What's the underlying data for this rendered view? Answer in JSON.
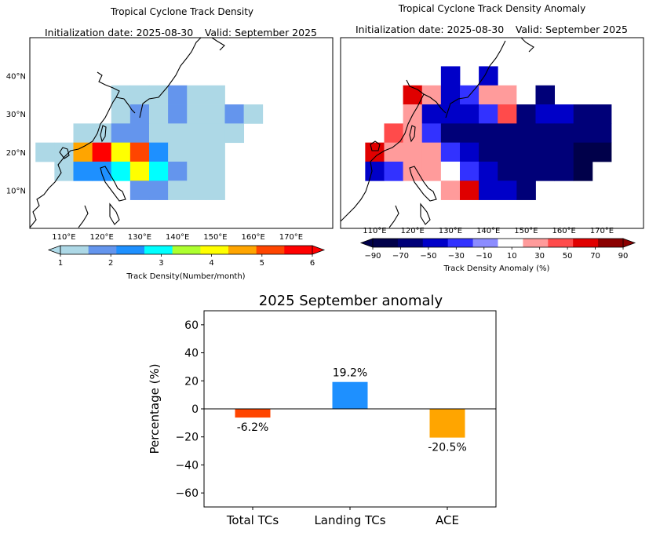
{
  "maps": {
    "left": {
      "title": "Tropical Cyclone Track Density",
      "init_label": "Initialization date: 2025-08-30",
      "valid_label": "Valid: September 2025",
      "lat_labels": [
        "40°N",
        "30°N",
        "20°N",
        "10°N"
      ],
      "lon_labels": [
        "110°E",
        "120°E",
        "130°E",
        "140°E",
        "150°E",
        "160°E",
        "170°E"
      ],
      "colorbar": {
        "label": "Track Density(Number/month)",
        "ticks": [
          "1",
          "2",
          "3",
          "4",
          "5",
          "6"
        ],
        "colors": [
          "#add8e6",
          "#6495ed",
          "#1e90ff",
          "#00ffff",
          "#adff2f",
          "#ffff00",
          "#ffa500",
          "#ff4500",
          "#ff0000"
        ]
      },
      "cells": [
        {
          "lon": 125,
          "lat": 35,
          "value": 1.0
        },
        {
          "lon": 130,
          "lat": 35,
          "value": 1.0
        },
        {
          "lon": 135,
          "lat": 35,
          "value": 1.0
        },
        {
          "lon": 140,
          "lat": 35,
          "value": 1.6
        },
        {
          "lon": 145,
          "lat": 35,
          "value": 1.0
        },
        {
          "lon": 150,
          "lat": 35,
          "value": 1.0
        },
        {
          "lon": 125,
          "lat": 30,
          "value": 1.0
        },
        {
          "lon": 130,
          "lat": 30,
          "value": 2.0
        },
        {
          "lon": 135,
          "lat": 30,
          "value": 1.0
        },
        {
          "lon": 140,
          "lat": 30,
          "value": 2.0
        },
        {
          "lon": 145,
          "lat": 30,
          "value": 1.0
        },
        {
          "lon": 150,
          "lat": 30,
          "value": 1.0
        },
        {
          "lon": 155,
          "lat": 30,
          "value": 2.0
        },
        {
          "lon": 160,
          "lat": 30,
          "value": 1.0
        },
        {
          "lon": 115,
          "lat": 25,
          "value": 1.0
        },
        {
          "lon": 120,
          "lat": 25,
          "value": 1.0
        },
        {
          "lon": 125,
          "lat": 25,
          "value": 2.0
        },
        {
          "lon": 130,
          "lat": 25,
          "value": 2.0
        },
        {
          "lon": 135,
          "lat": 25,
          "value": 1.0
        },
        {
          "lon": 140,
          "lat": 25,
          "value": 1.0
        },
        {
          "lon": 145,
          "lat": 25,
          "value": 1.0
        },
        {
          "lon": 150,
          "lat": 25,
          "value": 1.0
        },
        {
          "lon": 155,
          "lat": 25,
          "value": 1.0
        },
        {
          "lon": 105,
          "lat": 20,
          "value": 1.0
        },
        {
          "lon": 110,
          "lat": 20,
          "value": 1.0
        },
        {
          "lon": 115,
          "lat": 20,
          "value": 5.0
        },
        {
          "lon": 120,
          "lat": 20,
          "value": 6.0
        },
        {
          "lon": 125,
          "lat": 20,
          "value": 4.5
        },
        {
          "lon": 130,
          "lat": 20,
          "value": 5.8
        },
        {
          "lon": 135,
          "lat": 20,
          "value": 2.5
        },
        {
          "lon": 140,
          "lat": 20,
          "value": 1.0
        },
        {
          "lon": 145,
          "lat": 20,
          "value": 1.0
        },
        {
          "lon": 150,
          "lat": 20,
          "value": 1.0
        },
        {
          "lon": 110,
          "lat": 15,
          "value": 1.0
        },
        {
          "lon": 115,
          "lat": 15,
          "value": 2.5
        },
        {
          "lon": 120,
          "lat": 15,
          "value": 2.5
        },
        {
          "lon": 125,
          "lat": 15,
          "value": 3.5
        },
        {
          "lon": 130,
          "lat": 15,
          "value": 4.5
        },
        {
          "lon": 135,
          "lat": 15,
          "value": 3.5
        },
        {
          "lon": 140,
          "lat": 15,
          "value": 2.0
        },
        {
          "lon": 145,
          "lat": 15,
          "value": 1.0
        },
        {
          "lon": 150,
          "lat": 15,
          "value": 1.0
        },
        {
          "lon": 130,
          "lat": 10,
          "value": 1.6
        },
        {
          "lon": 135,
          "lat": 10,
          "value": 1.6
        },
        {
          "lon": 140,
          "lat": 10,
          "value": 1.0
        },
        {
          "lon": 145,
          "lat": 10,
          "value": 1.0
        },
        {
          "lon": 150,
          "lat": 10,
          "value": 1.0
        }
      ]
    },
    "right": {
      "title": "Tropical Cyclone Track Density Anomaly",
      "init_label": "Initialization date: 2025-08-30",
      "valid_label": "Valid: September 2025",
      "lon_labels": [
        "110°E",
        "120°E",
        "130°E",
        "140°E",
        "150°E",
        "160°E",
        "170°E"
      ],
      "colorbar": {
        "label": "Track Density Anomaly (%)",
        "ticks": [
          "−90",
          "−70",
          "−50",
          "−30",
          "−10",
          "10",
          "30",
          "50",
          "70",
          "90"
        ],
        "colors": [
          "#00004a",
          "#000078",
          "#0000c8",
          "#3232ff",
          "#8c8cff",
          "#ffffff",
          "#ff9b9b",
          "#ff4b4b",
          "#e00000",
          "#8b0000"
        ]
      },
      "cells": [
        {
          "lon": 130,
          "lat": 40,
          "value": -50
        },
        {
          "lon": 140,
          "lat": 40,
          "value": -50
        },
        {
          "lon": 120,
          "lat": 35,
          "value": 70
        },
        {
          "lon": 125,
          "lat": 35,
          "value": 20
        },
        {
          "lon": 130,
          "lat": 35,
          "value": -50
        },
        {
          "lon": 135,
          "lat": 35,
          "value": -20
        },
        {
          "lon": 140,
          "lat": 35,
          "value": 30
        },
        {
          "lon": 145,
          "lat": 35,
          "value": 30
        },
        {
          "lon": 150,
          "lat": 35,
          "value": -5
        },
        {
          "lon": 155,
          "lat": 35,
          "value": -80
        },
        {
          "lon": 120,
          "lat": 30,
          "value": 15
        },
        {
          "lon": 125,
          "lat": 30,
          "value": -50
        },
        {
          "lon": 130,
          "lat": 30,
          "value": -60
        },
        {
          "lon": 135,
          "lat": 30,
          "value": -50
        },
        {
          "lon": 140,
          "lat": 30,
          "value": -30
        },
        {
          "lon": 145,
          "lat": 30,
          "value": 50
        },
        {
          "lon": 150,
          "lat": 30,
          "value": -70
        },
        {
          "lon": 155,
          "lat": 30,
          "value": -60
        },
        {
          "lon": 160,
          "lat": 30,
          "value": -60
        },
        {
          "lon": 165,
          "lat": 30,
          "value": -80
        },
        {
          "lon": 170,
          "lat": 30,
          "value": -80
        },
        {
          "lon": 115,
          "lat": 25,
          "value": 50
        },
        {
          "lon": 120,
          "lat": 25,
          "value": 20
        },
        {
          "lon": 125,
          "lat": 25,
          "value": -20
        },
        {
          "lon": 130,
          "lat": 25,
          "value": -70
        },
        {
          "lon": 135,
          "lat": 25,
          "value": -70
        },
        {
          "lon": 140,
          "lat": 25,
          "value": -70
        },
        {
          "lon": 145,
          "lat": 25,
          "value": -70
        },
        {
          "lon": 150,
          "lat": 25,
          "value": -70
        },
        {
          "lon": 155,
          "lat": 25,
          "value": -70
        },
        {
          "lon": 160,
          "lat": 25,
          "value": -70
        },
        {
          "lon": 165,
          "lat": 25,
          "value": -70
        },
        {
          "lon": 170,
          "lat": 25,
          "value": -70
        },
        {
          "lon": 110,
          "lat": 20,
          "value": 70
        },
        {
          "lon": 115,
          "lat": 20,
          "value": 30
        },
        {
          "lon": 120,
          "lat": 20,
          "value": 20
        },
        {
          "lon": 125,
          "lat": 20,
          "value": 30
        },
        {
          "lon": 130,
          "lat": 20,
          "value": -20
        },
        {
          "lon": 135,
          "lat": 20,
          "value": -50
        },
        {
          "lon": 140,
          "lat": 20,
          "value": -70
        },
        {
          "lon": 145,
          "lat": 20,
          "value": -80
        },
        {
          "lon": 150,
          "lat": 20,
          "value": -80
        },
        {
          "lon": 155,
          "lat": 20,
          "value": -80
        },
        {
          "lon": 160,
          "lat": 20,
          "value": -80
        },
        {
          "lon": 165,
          "lat": 20,
          "value": -90
        },
        {
          "lon": 170,
          "lat": 20,
          "value": -90
        },
        {
          "lon": 110,
          "lat": 15,
          "value": -60
        },
        {
          "lon": 115,
          "lat": 15,
          "value": -30
        },
        {
          "lon": 120,
          "lat": 15,
          "value": 20
        },
        {
          "lon": 125,
          "lat": 15,
          "value": 30
        },
        {
          "lon": 130,
          "lat": 15,
          "value": 0
        },
        {
          "lon": 135,
          "lat": 15,
          "value": -20
        },
        {
          "lon": 140,
          "lat": 15,
          "value": -60
        },
        {
          "lon": 145,
          "lat": 15,
          "value": -70
        },
        {
          "lon": 150,
          "lat": 15,
          "value": -80
        },
        {
          "lon": 155,
          "lat": 15,
          "value": -80
        },
        {
          "lon": 160,
          "lat": 15,
          "value": -80
        },
        {
          "lon": 165,
          "lat": 15,
          "value": -90
        },
        {
          "lon": 130,
          "lat": 10,
          "value": 20
        },
        {
          "lon": 135,
          "lat": 10,
          "value": 70
        },
        {
          "lon": 140,
          "lat": 10,
          "value": -60
        },
        {
          "lon": 145,
          "lat": 10,
          "value": -50
        },
        {
          "lon": 150,
          "lat": 10,
          "value": -70
        }
      ]
    }
  },
  "chart_data": {
    "type": "bar",
    "title": "2025 September anomaly",
    "xlabel": "",
    "ylabel": "Percentage (%)",
    "categories": [
      "Total TCs",
      "Landing TCs",
      "ACE"
    ],
    "values": [
      -6.2,
      19.2,
      -20.5
    ],
    "value_labels": [
      "-6.2%",
      "19.2%",
      "-20.5%"
    ],
    "colors": [
      "#ff4500",
      "#1e90ff",
      "#ffa500"
    ],
    "ylim": [
      -70,
      70
    ],
    "yticks": [
      -60,
      -40,
      -20,
      0,
      20,
      40,
      60
    ],
    "grid": false
  }
}
